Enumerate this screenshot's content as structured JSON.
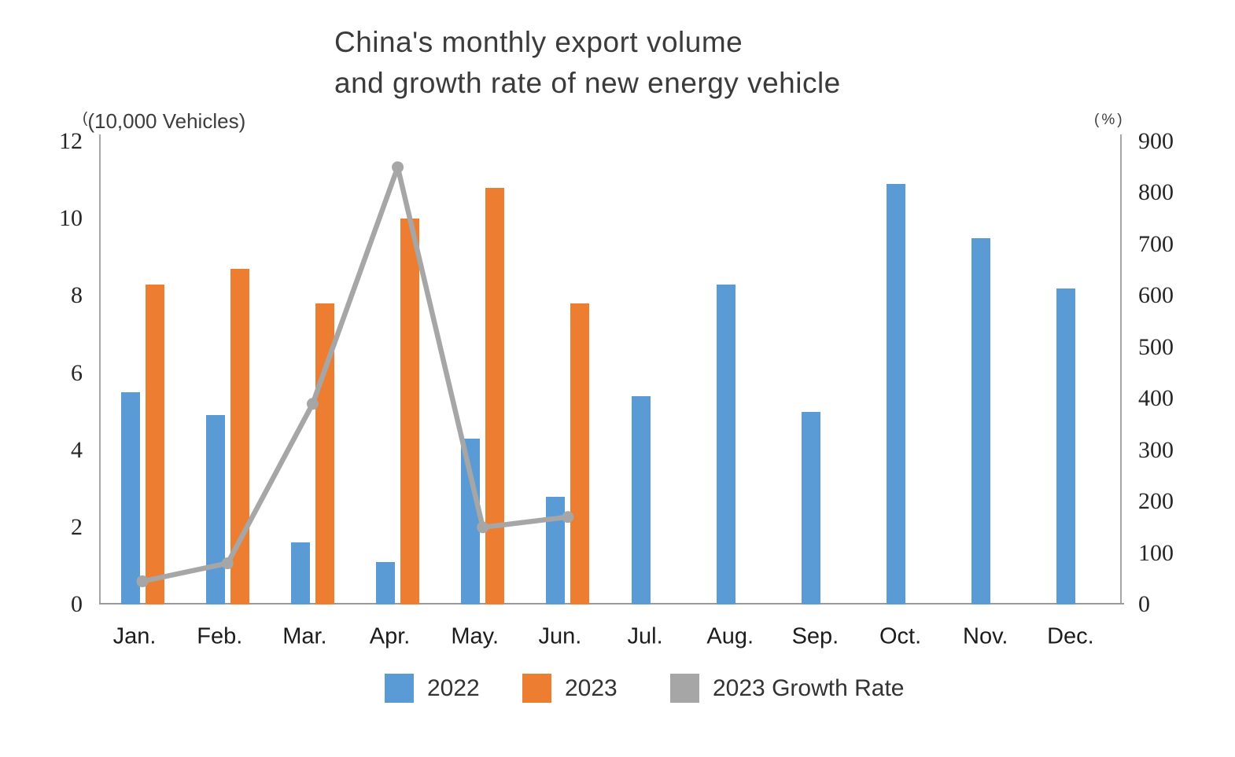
{
  "title": {
    "line1": "China's monthly export volume",
    "line2": "and growth rate of new energy vehicle"
  },
  "axes": {
    "left_unit_prefix": "(",
    "left_unit": "(10,000 Vehicles)",
    "right_unit": "(%)",
    "left_ticks": [
      12,
      10,
      8,
      6,
      4,
      2,
      0
    ],
    "right_ticks": [
      900,
      800,
      700,
      600,
      500,
      400,
      300,
      200,
      100,
      0
    ]
  },
  "legend": [
    {
      "label": "2022",
      "color": "#5B9BD5"
    },
    {
      "label": "2023",
      "color": "#ED7D31"
    },
    {
      "label": "2023 Growth Rate",
      "color": "#A6A6A6"
    }
  ],
  "colors": {
    "bar_2022": "#5B9BD5",
    "bar_2023": "#ED7D31",
    "growth_line": "#A6A6A6",
    "axis": "#a6a6a6",
    "tick_text": "#262626",
    "title_text": "#3b3b3b"
  },
  "chart_data": {
    "type": "bar",
    "subtype": "combo-bar-line-dual-axis",
    "title": "China's monthly export volume and growth rate of new energy vehicle",
    "categories": [
      "Jan.",
      "Feb.",
      "Mar.",
      "Apr.",
      "May.",
      "Jun.",
      "Jul.",
      "Aug.",
      "Sep.",
      "Oct.",
      "Nov.",
      "Dec."
    ],
    "series": [
      {
        "name": "2022",
        "type": "bar",
        "axis": "left",
        "color": "#5B9BD5",
        "values": [
          5.5,
          4.9,
          1.6,
          1.1,
          4.3,
          2.8,
          5.4,
          8.3,
          5.0,
          10.9,
          9.5,
          8.2
        ]
      },
      {
        "name": "2023",
        "type": "bar",
        "axis": "left",
        "color": "#ED7D31",
        "values": [
          8.3,
          8.7,
          7.8,
          10.0,
          10.8,
          7.8,
          null,
          null,
          null,
          null,
          null,
          null
        ]
      },
      {
        "name": "2023 Growth Rate",
        "type": "line",
        "axis": "right",
        "color": "#A6A6A6",
        "values": [
          45,
          80,
          390,
          850,
          150,
          170,
          null,
          null,
          null,
          null,
          null,
          null
        ]
      }
    ],
    "left_axis": {
      "label": "(10,000 Vehicles)",
      "min": 0,
      "max": 12,
      "tick_step": 2
    },
    "right_axis": {
      "label": "(%)",
      "min": 0,
      "max": 900,
      "tick_step": 100
    },
    "grid": false,
    "legend_position": "bottom"
  }
}
